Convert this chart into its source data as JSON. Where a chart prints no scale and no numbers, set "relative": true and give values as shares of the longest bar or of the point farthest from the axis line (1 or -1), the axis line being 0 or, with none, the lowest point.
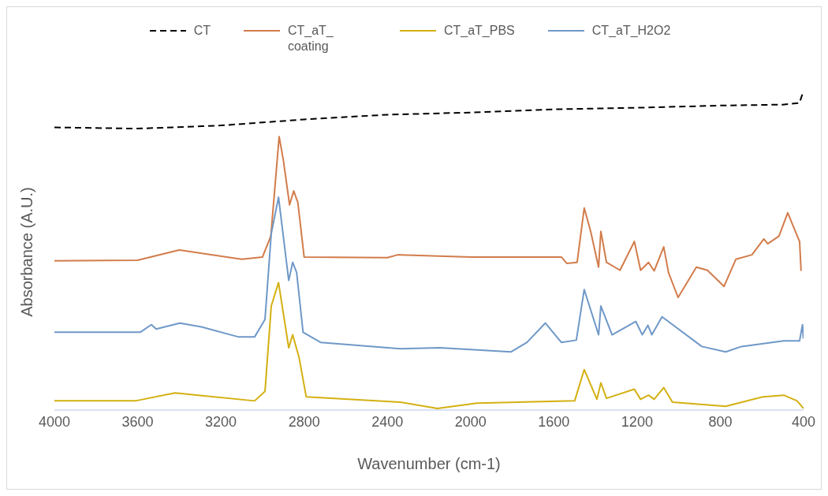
{
  "chart_data": {
    "type": "line",
    "xlabel": "Wavenumber (cm-1)",
    "ylabel": "Absorbance (A.U.)",
    "relative": true,
    "xlim": [
      4000,
      400
    ],
    "xticks": [
      4000,
      3600,
      3200,
      2800,
      2400,
      2000,
      1600,
      1200,
      800,
      400
    ],
    "legend": "top",
    "marker": "none",
    "grid": false,
    "series": [
      {
        "name": "CT",
        "color": "#000000",
        "line_style": "dashed",
        "x": [
          4000,
          3600,
          3200,
          2800,
          2400,
          2000,
          1600,
          1200,
          800,
          500,
          420,
          405
        ],
        "values": [
          0.894,
          0.89,
          0.9,
          0.919,
          0.934,
          0.941,
          0.951,
          0.956,
          0.963,
          0.966,
          0.971,
          1.0
        ]
      },
      {
        "name": "CT_aT_ coating",
        "color": "#d27c4b",
        "line_style": "solid",
        "x": [
          4000,
          3600,
          3400,
          3100,
          3000,
          2960,
          2920,
          2900,
          2870,
          2850,
          2830,
          2800,
          2400,
          2350,
          2000,
          1564,
          1538,
          1488,
          1454,
          1423,
          1385,
          1374,
          1347,
          1282,
          1213,
          1183,
          1145,
          1118,
          1072,
          1049,
          1003,
          915,
          862,
          782,
          725,
          648,
          591,
          572,
          518,
          476,
          450,
          419,
          412
        ],
        "values": [
          0.472,
          0.474,
          0.506,
          0.477,
          0.484,
          0.55,
          0.865,
          0.791,
          0.649,
          0.693,
          0.656,
          0.484,
          0.482,
          0.491,
          0.484,
          0.484,
          0.464,
          0.467,
          0.639,
          0.565,
          0.452,
          0.565,
          0.467,
          0.442,
          0.533,
          0.442,
          0.467,
          0.44,
          0.516,
          0.435,
          0.356,
          0.452,
          0.442,
          0.391,
          0.477,
          0.491,
          0.541,
          0.526,
          0.55,
          0.624,
          0.582,
          0.533,
          0.44
        ]
      },
      {
        "name": "CT_aT_PBS",
        "color": "#d4b012",
        "line_style": "solid",
        "x": [
          4000,
          3611,
          3420,
          3038,
          2988,
          2958,
          2923,
          2874,
          2855,
          2824,
          2790,
          2339,
          2160,
          1969,
          1500,
          1454,
          1393,
          1374,
          1347,
          1213,
          1183,
          1145,
          1118,
          1072,
          1030,
          774,
          595,
          495,
          431,
          400
        ],
        "values": [
          0.029,
          0.029,
          0.054,
          0.029,
          0.059,
          0.329,
          0.403,
          0.197,
          0.238,
          0.165,
          0.042,
          0.025,
          0.005,
          0.022,
          0.029,
          0.128,
          0.034,
          0.086,
          0.037,
          0.066,
          0.034,
          0.047,
          0.034,
          0.071,
          0.025,
          0.012,
          0.042,
          0.047,
          0.029,
          0.005
        ]
      },
      {
        "name": "CT_aT_H2O2",
        "color": "#6f98c8",
        "line_style": "solid",
        "x": [
          4000,
          3588,
          3534,
          3511,
          3397,
          3294,
          3114,
          3038,
          2988,
          2958,
          2923,
          2874,
          2855,
          2836,
          2805,
          2721,
          2339,
          2148,
          1805,
          1729,
          1641,
          1564,
          1492,
          1454,
          1385,
          1374,
          1320,
          1206,
          1175,
          1148,
          1129,
          1080,
          889,
          774,
          698,
          495,
          419,
          405,
          401
        ],
        "values": [
          0.246,
          0.246,
          0.27,
          0.256,
          0.275,
          0.263,
          0.231,
          0.231,
          0.287,
          0.558,
          0.673,
          0.41,
          0.467,
          0.435,
          0.246,
          0.214,
          0.194,
          0.197,
          0.184,
          0.214,
          0.275,
          0.214,
          0.221,
          0.381,
          0.238,
          0.329,
          0.238,
          0.28,
          0.238,
          0.268,
          0.238,
          0.295,
          0.201,
          0.184,
          0.201,
          0.219,
          0.219,
          0.27,
          0.226
        ]
      }
    ]
  }
}
